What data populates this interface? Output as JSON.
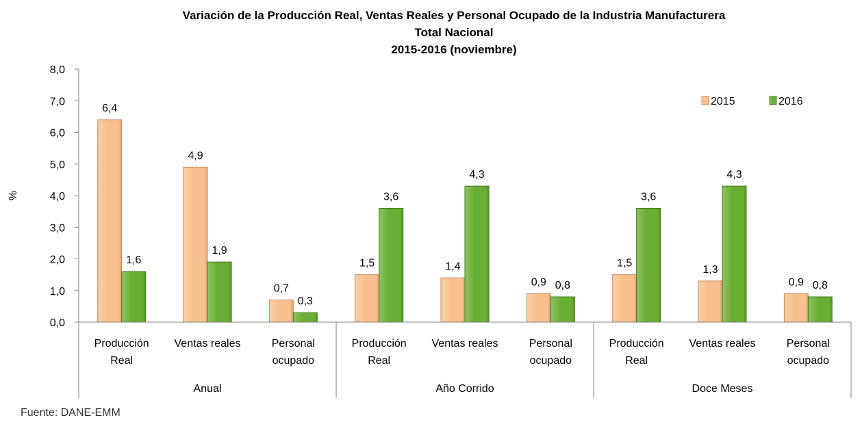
{
  "chart_data": {
    "type": "bar",
    "title": [
      "Variación de la Producción Real, Ventas Reales y Personal Ocupado de la Industria  Manufacturera",
      "Total Nacional",
      "2015-2016 (noviembre)"
    ],
    "ylabel": "%",
    "xlabel": "",
    "ylim": [
      0,
      8
    ],
    "yticks": [
      "0,0",
      "1,0",
      "2,0",
      "3,0",
      "4,0",
      "5,0",
      "6,0",
      "7,0",
      "8,0"
    ],
    "grid": false,
    "legend_position": "top-right",
    "groups": [
      {
        "name": "Anual",
        "categories": [
          [
            "Producción",
            "Real"
          ],
          [
            "Ventas reales"
          ],
          [
            "Personal",
            "ocupado"
          ]
        ]
      },
      {
        "name": "Año Corrido",
        "categories": [
          [
            "Producción",
            "Real"
          ],
          [
            "Ventas reales"
          ],
          [
            "Personal",
            "ocupado"
          ]
        ]
      },
      {
        "name": "Doce Meses",
        "categories": [
          [
            "Producción",
            "Real"
          ],
          [
            "Ventas reales"
          ],
          [
            "Personal",
            "ocupado"
          ]
        ]
      }
    ],
    "series": [
      {
        "name": "2015",
        "color": "#F8C08E",
        "values": [
          6.4,
          4.9,
          0.7,
          1.5,
          1.4,
          0.9,
          1.5,
          1.3,
          0.9
        ],
        "labels": [
          "6,4",
          "4,9",
          "0,7",
          "1,5",
          "1,4",
          "0,9",
          "1,5",
          "1,3",
          "0,9"
        ]
      },
      {
        "name": "2016",
        "color": "#6AAE33",
        "values": [
          1.6,
          1.9,
          0.3,
          3.6,
          4.3,
          0.8,
          3.6,
          4.3,
          0.8
        ],
        "labels": [
          "1,6",
          "1,9",
          "0,3",
          "3,6",
          "4,3",
          "0,8",
          "3,6",
          "4,3",
          "0,8"
        ]
      }
    ]
  },
  "source": "Fuente: DANE-EMM"
}
